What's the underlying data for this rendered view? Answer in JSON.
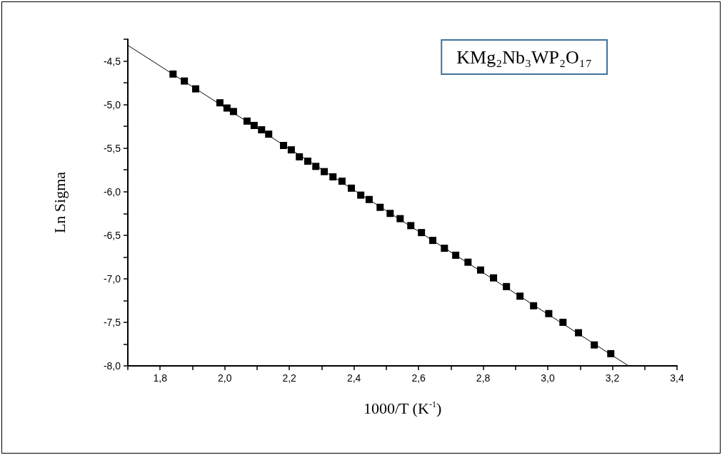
{
  "chart_data": {
    "type": "scatter",
    "xlabel": "1000/T (K$^{-1}$)",
    "ylabel": "Ln Sigma",
    "annotations": [
      "KMg₂Nb₃WP₂O₁₇"
    ],
    "xlim": [
      1.7,
      3.4
    ],
    "xticks": [
      {
        "value": 1.7,
        "label": null
      },
      {
        "value": 1.8,
        "label": "1,8"
      },
      {
        "value": 1.9,
        "label": null
      },
      {
        "value": 2.0,
        "label": "2,0"
      },
      {
        "value": 2.1,
        "label": null
      },
      {
        "value": 2.2,
        "label": "2,2"
      },
      {
        "value": 2.3,
        "label": null
      },
      {
        "value": 2.4,
        "label": "2,4"
      },
      {
        "value": 2.5,
        "label": null
      },
      {
        "value": 2.6,
        "label": "2,6"
      },
      {
        "value": 2.7,
        "label": null
      },
      {
        "value": 2.8,
        "label": "2,8"
      },
      {
        "value": 2.9,
        "label": null
      },
      {
        "value": 3.0,
        "label": "3,0"
      },
      {
        "value": 3.1,
        "label": null
      },
      {
        "value": 3.2,
        "label": "3,2"
      },
      {
        "value": 3.3,
        "label": null
      },
      {
        "value": 3.4,
        "label": "3,4"
      }
    ],
    "ylim": [
      -8,
      -4.25
    ],
    "yticks": [
      {
        "value": -8,
        "label": "-8,0"
      },
      {
        "value": -7.75,
        "label": null
      },
      {
        "value": -7.5,
        "label": "-7,5"
      },
      {
        "value": -7.25,
        "label": null
      },
      {
        "value": -7,
        "label": "-7,0"
      },
      {
        "value": -6.75,
        "label": null
      },
      {
        "value": -6.5,
        "label": "-6,5"
      },
      {
        "value": -6.25,
        "label": null
      },
      {
        "value": -6,
        "label": "-6,0"
      },
      {
        "value": -5.75,
        "label": null
      },
      {
        "value": -5.5,
        "label": "-5,5"
      },
      {
        "value": -5.25,
        "label": null
      },
      {
        "value": -5,
        "label": "-5,0"
      },
      {
        "value": -4.75,
        "label": null
      },
      {
        "value": -4.5,
        "label": "-4,5"
      },
      {
        "value": -4.25,
        "label": null
      }
    ],
    "grid": false,
    "marker": "square",
    "series": [
      {
        "color": "#000000",
        "x": [
          1.84,
          1.875,
          1.91,
          1.985,
          2.007,
          2.027,
          2.069,
          2.091,
          2.114,
          2.136,
          2.182,
          2.206,
          2.231,
          2.257,
          2.282,
          2.308,
          2.335,
          2.363,
          2.392,
          2.421,
          2.447,
          2.481,
          2.512,
          2.543,
          2.576,
          2.609,
          2.644,
          2.68,
          2.715,
          2.753,
          2.792,
          2.832,
          2.872,
          2.914,
          2.956,
          3.003,
          3.047,
          3.095,
          3.144,
          3.195
        ],
        "values": [
          -4.65,
          -4.73,
          -4.82,
          -4.98,
          -5.04,
          -5.08,
          -5.19,
          -5.24,
          -5.29,
          -5.34,
          -5.47,
          -5.52,
          -5.6,
          -5.65,
          -5.71,
          -5.77,
          -5.83,
          -5.88,
          -5.96,
          -6.04,
          -6.09,
          -6.18,
          -6.25,
          -6.31,
          -6.39,
          -6.47,
          -6.56,
          -6.65,
          -6.73,
          -6.81,
          -6.9,
          -6.99,
          -7.09,
          -7.2,
          -7.31,
          -7.4,
          -7.5,
          -7.62,
          -7.76,
          -7.86
        ]
      },
      {
        "type": "line",
        "color": "#000000",
        "marker": "none",
        "line_style": "solid",
        "x": [
          1.7,
          3.25
        ],
        "values": [
          -4.32,
          -8.0
        ]
      }
    ]
  }
}
